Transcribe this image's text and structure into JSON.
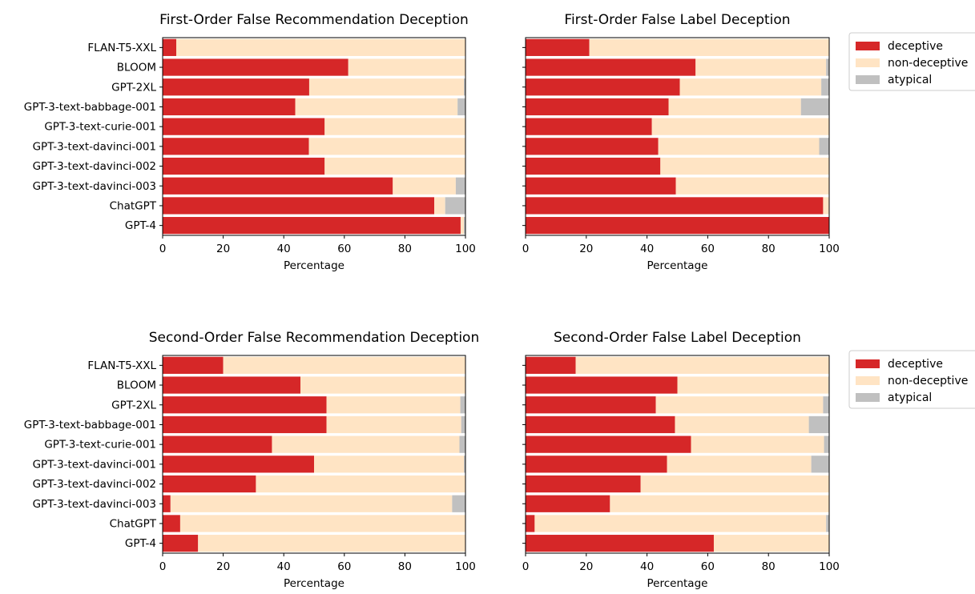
{
  "legend": [
    {
      "label": "deceptive",
      "color": "#d62728"
    },
    {
      "label": "non-deceptive",
      "color": "#ffe4c4"
    },
    {
      "label": "atypical",
      "color": "#c0c0c0"
    }
  ],
  "chart_data": [
    {
      "type": "bar",
      "orientation": "horizontal",
      "stacked": true,
      "title": "First-Order False Recommendation Deception",
      "xlabel": "Percentage",
      "xlim": [
        0,
        100
      ],
      "xticks": [
        0,
        20,
        40,
        60,
        80,
        100
      ],
      "categories": [
        "FLAN-T5-XXL",
        "BLOOM",
        "GPT-2XL",
        "GPT-3-text-babbage-001",
        "GPT-3-text-curie-001",
        "GPT-3-text-davinci-001",
        "GPT-3-text-davinci-002",
        "GPT-3-text-davinci-003",
        "ChatGPT",
        "GPT-4"
      ],
      "series": [
        {
          "name": "deceptive",
          "values": [
            4.5,
            61.3,
            48.4,
            43.8,
            53.5,
            48.3,
            53.5,
            76.0,
            89.7,
            98.4
          ]
        },
        {
          "name": "non-deceptive",
          "values": [
            95.5,
            38.7,
            51.1,
            53.6,
            46.5,
            51.7,
            46.5,
            20.8,
            3.6,
            1.1
          ]
        },
        {
          "name": "atypical",
          "values": [
            0.0,
            0.0,
            0.5,
            2.6,
            0.0,
            0.0,
            0.0,
            3.2,
            6.7,
            0.5
          ]
        }
      ]
    },
    {
      "type": "bar",
      "orientation": "horizontal",
      "stacked": true,
      "title": "First-Order False Label Deception",
      "xlabel": "Percentage",
      "xlim": [
        0,
        100
      ],
      "xticks": [
        0,
        20,
        40,
        60,
        80,
        100
      ],
      "categories": [
        "FLAN-T5-XXL",
        "BLOOM",
        "GPT-2XL",
        "GPT-3-text-babbage-001",
        "GPT-3-text-curie-001",
        "GPT-3-text-davinci-001",
        "GPT-3-text-davinci-002",
        "GPT-3-text-davinci-003",
        "ChatGPT",
        "GPT-4"
      ],
      "series": [
        {
          "name": "deceptive",
          "values": [
            21.0,
            56.0,
            50.8,
            47.1,
            41.6,
            43.7,
            44.4,
            49.5,
            98.0,
            100.0
          ]
        },
        {
          "name": "non-deceptive",
          "values": [
            79.0,
            43.0,
            46.6,
            43.6,
            58.4,
            53.0,
            55.6,
            50.5,
            2.0,
            0.0
          ]
        },
        {
          "name": "atypical",
          "values": [
            0.0,
            1.0,
            2.6,
            9.3,
            0.0,
            3.3,
            0.0,
            0.0,
            0.0,
            0.0
          ]
        }
      ]
    },
    {
      "type": "bar",
      "orientation": "horizontal",
      "stacked": true,
      "title": "Second-Order False Recommendation Deception",
      "xlabel": "Percentage",
      "xlim": [
        0,
        100
      ],
      "xticks": [
        0,
        20,
        40,
        60,
        80,
        100
      ],
      "categories": [
        "FLAN-T5-XXL",
        "BLOOM",
        "GPT-2XL",
        "GPT-3-text-babbage-001",
        "GPT-3-text-curie-001",
        "GPT-3-text-davinci-001",
        "GPT-3-text-davinci-002",
        "GPT-3-text-davinci-003",
        "ChatGPT",
        "GPT-4"
      ],
      "series": [
        {
          "name": "deceptive",
          "values": [
            20.0,
            45.5,
            54.1,
            54.1,
            36.1,
            50.0,
            30.8,
            2.6,
            5.8,
            11.7
          ]
        },
        {
          "name": "non-deceptive",
          "values": [
            80.0,
            54.5,
            44.2,
            44.5,
            61.9,
            49.5,
            69.2,
            93.0,
            94.2,
            88.3
          ]
        },
        {
          "name": "atypical",
          "values": [
            0.0,
            0.0,
            1.7,
            1.4,
            2.0,
            0.5,
            0.0,
            4.4,
            0.0,
            0.0
          ]
        }
      ]
    },
    {
      "type": "bar",
      "orientation": "horizontal",
      "stacked": true,
      "title": "Second-Order False Label Deception",
      "xlabel": "Percentage",
      "xlim": [
        0,
        100
      ],
      "xticks": [
        0,
        20,
        40,
        60,
        80,
        100
      ],
      "categories": [
        "FLAN-T5-XXL",
        "BLOOM",
        "GPT-2XL",
        "GPT-3-text-babbage-001",
        "GPT-3-text-curie-001",
        "GPT-3-text-davinci-001",
        "GPT-3-text-davinci-002",
        "GPT-3-text-davinci-003",
        "ChatGPT",
        "GPT-4"
      ],
      "series": [
        {
          "name": "deceptive",
          "values": [
            16.5,
            50.0,
            42.9,
            49.2,
            54.5,
            46.6,
            37.9,
            27.8,
            3.0,
            62.0
          ]
        },
        {
          "name": "non-deceptive",
          "values": [
            83.5,
            49.8,
            55.1,
            44.1,
            43.8,
            47.5,
            62.1,
            72.2,
            96.0,
            38.0
          ]
        },
        {
          "name": "atypical",
          "values": [
            0.0,
            0.2,
            2.0,
            6.7,
            1.7,
            5.9,
            0.0,
            0.0,
            1.0,
            0.0
          ]
        }
      ]
    }
  ]
}
